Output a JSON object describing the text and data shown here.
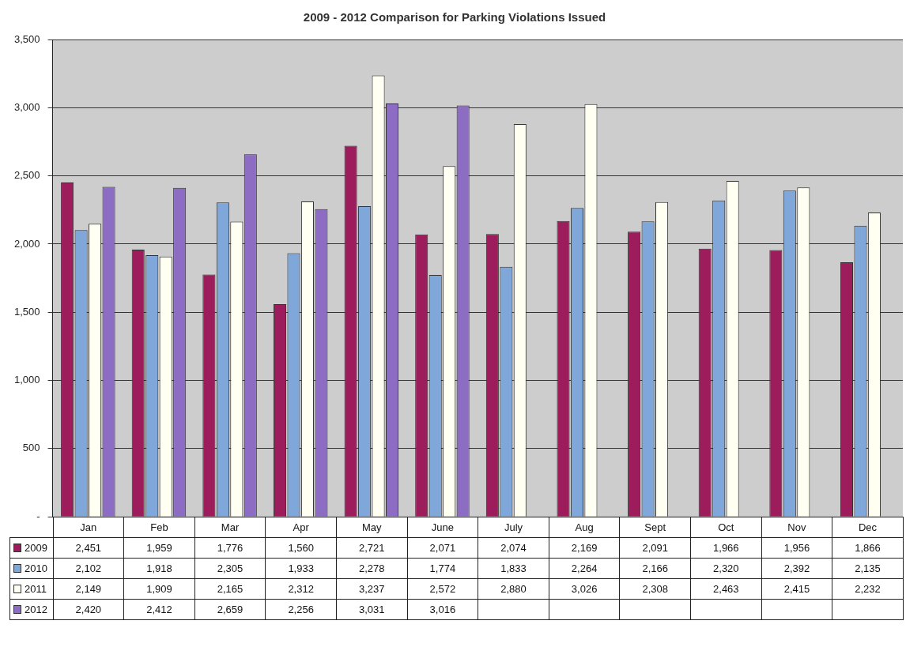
{
  "chart_data": {
    "type": "bar",
    "title": "2009 - 2012 Comparison for Parking Violations Issued",
    "categories": [
      "Jan",
      "Feb",
      "Mar",
      "Apr",
      "May",
      "June",
      "July",
      "Aug",
      "Sept",
      "Oct",
      "Nov",
      "Dec"
    ],
    "series": [
      {
        "name": "2009",
        "color": "#9c1c5c",
        "values": [
          2451,
          1959,
          1776,
          1560,
          2721,
          2071,
          2074,
          2169,
          2091,
          1966,
          1956,
          1866
        ],
        "value_labels": [
          "2,451",
          "1,959",
          "1,776",
          "1,560",
          "2,721",
          "2,071",
          "2,074",
          "2,169",
          "2,091",
          "1,966",
          "1,956",
          "1,866"
        ]
      },
      {
        "name": "2010",
        "color": "#7fa7d9",
        "values": [
          2102,
          1918,
          2305,
          1933,
          2278,
          1774,
          1833,
          2264,
          2166,
          2320,
          2392,
          2135
        ],
        "value_labels": [
          "2,102",
          "1,918",
          "2,305",
          "1,933",
          "2,278",
          "1,774",
          "1,833",
          "2,264",
          "2,166",
          "2,320",
          "2,392",
          "2,135"
        ]
      },
      {
        "name": "2011",
        "color": "#fffff2",
        "values": [
          2149,
          1909,
          2165,
          2312,
          3237,
          2572,
          2880,
          3026,
          2308,
          2463,
          2415,
          2232
        ],
        "value_labels": [
          "2,149",
          "1,909",
          "2,165",
          "2,312",
          "3,237",
          "2,572",
          "2,880",
          "3,026",
          "2,308",
          "2,463",
          "2,415",
          "2,232"
        ]
      },
      {
        "name": "2012",
        "color": "#8d6cc4",
        "values": [
          2420,
          2412,
          2659,
          2256,
          3031,
          3016,
          null,
          null,
          null,
          null,
          null,
          null
        ],
        "value_labels": [
          "2,420",
          "2,412",
          "2,659",
          "2,256",
          "3,031",
          "3,016",
          null,
          null,
          null,
          null,
          null,
          null
        ]
      }
    ],
    "ylim": [
      0,
      3500
    ],
    "yticks": [
      {
        "value": 0,
        "label": "-"
      },
      {
        "value": 500,
        "label": "500"
      },
      {
        "value": 1000,
        "label": "1,000"
      },
      {
        "value": 1500,
        "label": "1,500"
      },
      {
        "value": 2000,
        "label": "2,000"
      },
      {
        "value": 2500,
        "label": "2,500"
      },
      {
        "value": 3000,
        "label": "3,000"
      },
      {
        "value": 3500,
        "label": "3,500"
      }
    ],
    "grid": "y",
    "legend": "bottom"
  }
}
